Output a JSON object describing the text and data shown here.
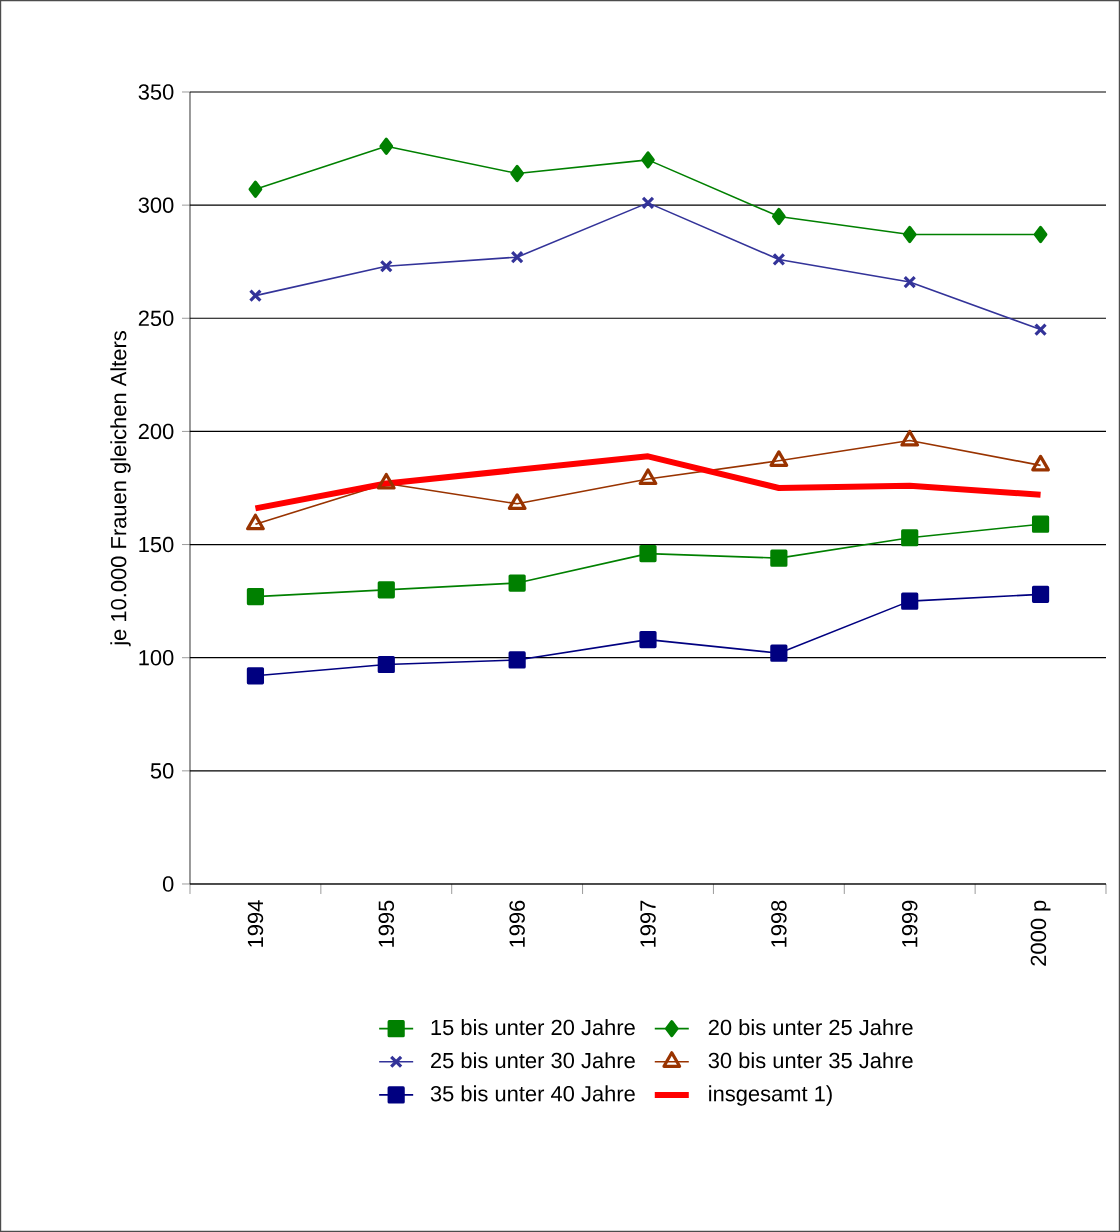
{
  "chart_data": {
    "type": "line",
    "ylabel": "je 10.000 Frauen gleichen Alters",
    "categories": [
      "1994",
      "1995",
      "1996",
      "1997",
      "1998",
      "1999",
      "2000 p"
    ],
    "ylim": [
      0,
      350
    ],
    "yticks": [
      0,
      50,
      100,
      150,
      200,
      250,
      300,
      350
    ],
    "grid": "y",
    "legend": "bottom",
    "series": [
      {
        "name": "15 bis unter 20 Jahre",
        "color": "#008000",
        "marker": "square",
        "values": [
          127,
          130,
          133,
          146,
          144,
          153,
          159
        ]
      },
      {
        "name": "20 bis unter 25 Jahre",
        "color": "#008000",
        "marker": "diamond",
        "values": [
          307,
          326,
          314,
          320,
          295,
          287,
          287
        ]
      },
      {
        "name": "25 bis unter 30 Jahre",
        "color": "#333399",
        "marker": "cross",
        "values": [
          260,
          273,
          277,
          301,
          276,
          266,
          245
        ]
      },
      {
        "name": "30 bis unter 35 Jahre",
        "color": "#993300",
        "marker": "triangle",
        "values": [
          159,
          177,
          168,
          179,
          187,
          196,
          185
        ]
      },
      {
        "name": "35 bis unter 40 Jahre",
        "color": "#000080",
        "marker": "square",
        "values": [
          92,
          97,
          99,
          108,
          102,
          125,
          128
        ]
      },
      {
        "name": "insgesamt 1)",
        "color": "#ff0000",
        "marker": "none",
        "values": [
          166,
          177,
          183,
          189,
          175,
          176,
          172
        ]
      }
    ]
  }
}
